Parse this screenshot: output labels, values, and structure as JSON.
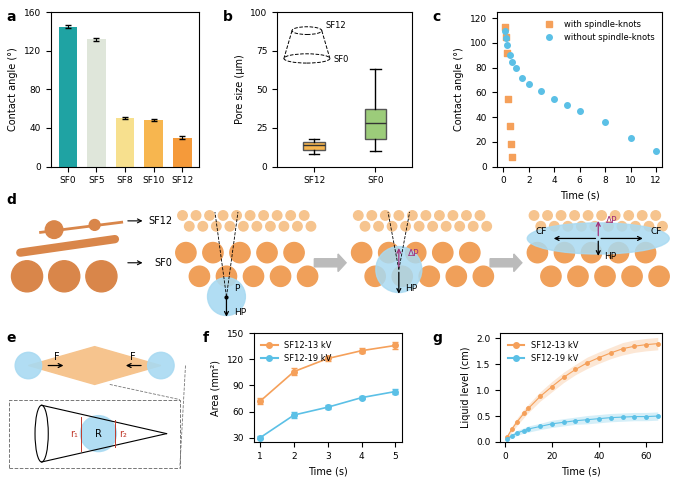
{
  "panel_labels": [
    "a",
    "b",
    "c",
    "d",
    "e",
    "f",
    "g"
  ],
  "chart_data": [
    {
      "type": "bar",
      "ylabel": "Contact angle (°)",
      "categories": [
        "SF0",
        "SF5",
        "SF8",
        "SF10",
        "SF12"
      ],
      "values": [
        145,
        132,
        50,
        48,
        30
      ],
      "errors": [
        2,
        1.5,
        1,
        1,
        1.5
      ],
      "colors": [
        "#1fa3a3",
        "#dfe6da",
        "#f7e08e",
        "#f7b64f",
        "#f59a3a"
      ],
      "ylim": [
        0,
        160
      ],
      "yticks": [
        0,
        40,
        80,
        120,
        160
      ]
    },
    {
      "type": "box",
      "ylabel": "Pore size (μm)",
      "categories": [
        "SF12",
        "SF0"
      ],
      "boxes": [
        {
          "min": 8,
          "q1": 11,
          "median": 14,
          "q3": 16,
          "max": 18
        },
        {
          "min": 10,
          "q1": 18,
          "median": 28,
          "q3": 37,
          "max": 63
        }
      ],
      "colors": [
        "#f7b64f",
        "#9ccc7a"
      ],
      "annotations": [
        "SF12",
        "SF0"
      ],
      "ylim": [
        0,
        100
      ],
      "yticks": [
        0,
        25,
        50,
        75,
        100
      ]
    },
    {
      "type": "scatter",
      "xlabel": "Time (s)",
      "ylabel": "Contact angle (°)",
      "series": [
        {
          "name": "with spindle-knots",
          "color": "#f5a05a",
          "marker": "s",
          "x": [
            0.1,
            0.2,
            0.3,
            0.4,
            0.5,
            0.6,
            0.7
          ],
          "values": [
            113,
            105,
            92,
            55,
            33,
            18,
            8
          ]
        },
        {
          "name": "without spindle-knots",
          "color": "#5bc0e6",
          "marker": "o",
          "x": [
            0.1,
            0.2,
            0.3,
            0.5,
            0.7,
            1,
            1.5,
            2,
            3,
            4,
            5,
            6,
            8,
            10,
            12
          ],
          "values": [
            110,
            104,
            98,
            90,
            85,
            80,
            72,
            67,
            61,
            55,
            50,
            45,
            36,
            23,
            13
          ]
        }
      ],
      "legend": "upper right",
      "xlim": [
        -0.5,
        12.5
      ],
      "xticks": [
        0,
        2,
        4,
        6,
        8,
        10,
        12
      ],
      "ylim": [
        0,
        125
      ],
      "yticks": [
        0,
        20,
        40,
        60,
        80,
        100,
        120
      ]
    },
    {
      "type": "line",
      "xlabel": "Time (s)",
      "ylabel": "Area (mm²)",
      "series": [
        {
          "name": "SF12-13 kV",
          "color": "#f5a05a",
          "marker": "o",
          "x": [
            1,
            2,
            3,
            4,
            5
          ],
          "values": [
            72,
            106,
            121,
            130,
            136
          ],
          "errors": [
            3,
            4,
            3,
            3,
            4
          ]
        },
        {
          "name": "SF12-19 kV",
          "color": "#5bc0e6",
          "marker": "o",
          "x": [
            1,
            2,
            3,
            4,
            5
          ],
          "values": [
            30,
            56,
            65,
            76,
            83
          ],
          "errors": [
            2,
            3,
            2,
            2,
            3
          ]
        }
      ],
      "legend": "upper left",
      "xlim": [
        0.8,
        5.2
      ],
      "xticks": [
        1,
        2,
        3,
        4,
        5
      ],
      "ylim": [
        25,
        150
      ],
      "yticks": [
        30,
        60,
        90,
        120,
        150
      ]
    },
    {
      "type": "line",
      "xlabel": "Time (s)",
      "ylabel": "Liquid level (cm)",
      "series": [
        {
          "name": "SF12-13 kV",
          "color": "#f5a05a",
          "marker": "o",
          "x": [
            1,
            3,
            5,
            8,
            10,
            15,
            20,
            25,
            30,
            35,
            40,
            45,
            50,
            55,
            60,
            65
          ],
          "values": [
            0.1,
            0.25,
            0.38,
            0.55,
            0.65,
            0.88,
            1.07,
            1.25,
            1.4,
            1.53,
            1.63,
            1.72,
            1.8,
            1.85,
            1.88,
            1.9
          ],
          "spread": [
            0.05,
            0.06,
            0.07,
            0.08,
            0.08,
            0.09,
            0.1,
            0.1,
            0.1,
            0.11,
            0.11,
            0.11,
            0.12,
            0.12,
            0.12,
            0.12
          ]
        },
        {
          "name": "SF12-19 kV",
          "color": "#5bc0e6",
          "marker": "o",
          "x": [
            1,
            3,
            5,
            8,
            10,
            15,
            20,
            25,
            30,
            35,
            40,
            45,
            50,
            55,
            60,
            65
          ],
          "values": [
            0.05,
            0.12,
            0.17,
            0.22,
            0.25,
            0.3,
            0.35,
            0.38,
            0.41,
            0.43,
            0.45,
            0.47,
            0.48,
            0.49,
            0.49,
            0.5
          ],
          "spread": [
            0.03,
            0.04,
            0.05,
            0.05,
            0.06,
            0.06,
            0.07,
            0.07,
            0.07,
            0.08,
            0.08,
            0.08,
            0.08,
            0.08,
            0.08,
            0.08
          ]
        }
      ],
      "legend": "upper left",
      "xlim": [
        -2,
        67
      ],
      "xticks": [
        0,
        20,
        40,
        60
      ],
      "ylim": [
        0,
        2.1
      ],
      "yticks": [
        {
          "value": 0,
          "label": "0.0"
        },
        {
          "value": 0.5,
          "label": "0.5"
        },
        {
          "value": 1.0,
          "label": "1.0"
        },
        {
          "value": 1.5,
          "label": "1.5"
        },
        {
          "value": 2.0,
          "label": "2.0"
        }
      ]
    }
  ],
  "diagrams": {
    "d": {
      "top_layer": "SF12",
      "bottom_layer": "SF0",
      "pressure": "P",
      "hydrostatic": "HP",
      "laplace": "ΔP",
      "capillary": "CF"
    },
    "e": {
      "force": "F",
      "radii": [
        "r₁",
        "R",
        "r₂"
      ]
    }
  }
}
